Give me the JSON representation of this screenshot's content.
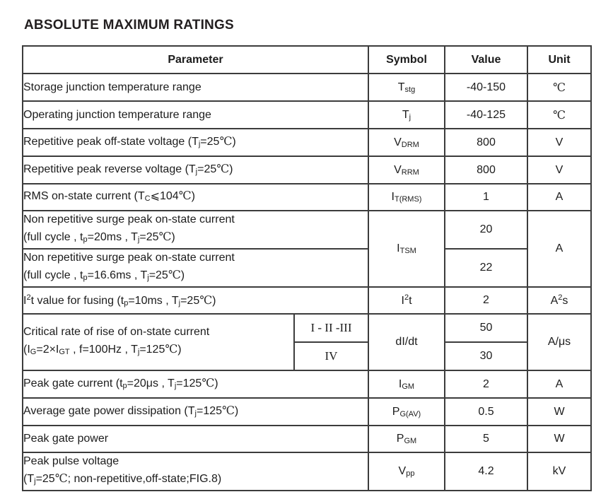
{
  "page_title": "ABSOLUTE MAXIMUM RATINGS",
  "table": {
    "headers": {
      "parameter": "Parameter",
      "symbol": "Symbol",
      "value": "Value",
      "unit": "Unit"
    },
    "rows": {
      "storage_temp": {
        "param": [
          [
            "n",
            "Storage junction temperature range"
          ]
        ],
        "symbol": [
          [
            "n",
            "T"
          ],
          [
            "b",
            "stg"
          ]
        ],
        "value": "-40-150",
        "unit": [
          [
            "c",
            "℃"
          ]
        ]
      },
      "operating_temp": {
        "param": [
          [
            "n",
            "Operating junction temperature range"
          ]
        ],
        "symbol": [
          [
            "n",
            "T"
          ],
          [
            "b",
            "j"
          ]
        ],
        "value": "-40-125",
        "unit": [
          [
            "c",
            "℃"
          ]
        ]
      },
      "vdrm": {
        "param": [
          [
            "n",
            "Repetitive peak off-state voltage (T"
          ],
          [
            "b",
            "j"
          ],
          [
            "n",
            "=25"
          ],
          [
            "c",
            "℃"
          ],
          [
            "n",
            ")"
          ]
        ],
        "symbol": [
          [
            "n",
            "V"
          ],
          [
            "b",
            "DRM"
          ]
        ],
        "value": "800",
        "unit": "V"
      },
      "vrrm": {
        "param": [
          [
            "n",
            "Repetitive peak reverse voltage (T"
          ],
          [
            "b",
            "j"
          ],
          [
            "n",
            "=25"
          ],
          [
            "c",
            "℃"
          ],
          [
            "n",
            ")"
          ]
        ],
        "symbol": [
          [
            "n",
            "V"
          ],
          [
            "b",
            "RRM"
          ]
        ],
        "value": "800",
        "unit": "V"
      },
      "itrms": {
        "param": [
          [
            "n",
            "RMS on-state current (T"
          ],
          [
            "b",
            "C"
          ],
          [
            "n",
            "⩽104"
          ],
          [
            "c",
            "℃"
          ],
          [
            "n",
            ")"
          ]
        ],
        "symbol": [
          [
            "n",
            "I"
          ],
          [
            "b",
            "T(RMS)"
          ]
        ],
        "value": "1",
        "unit": "A"
      },
      "itsm20": {
        "param": [
          [
            "n",
            "Non repetitive surge peak on-state current"
          ],
          [
            "br",
            ""
          ],
          [
            "n",
            "(full cycle , t"
          ],
          [
            "b",
            "p"
          ],
          [
            "n",
            "=20ms , T"
          ],
          [
            "b",
            "j"
          ],
          [
            "n",
            "=25"
          ],
          [
            "c",
            "℃"
          ],
          [
            "n",
            ")"
          ]
        ],
        "symbol": [
          [
            "n",
            "I"
          ],
          [
            "b",
            "TSM"
          ]
        ],
        "value": "20",
        "unit": "A"
      },
      "itsm166": {
        "param": [
          [
            "n",
            "Non repetitive surge peak on-state current"
          ],
          [
            "br",
            ""
          ],
          [
            "n",
            "(full cycle , t"
          ],
          [
            "b",
            "p"
          ],
          [
            "n",
            "=16.6ms , T"
          ],
          [
            "b",
            "j"
          ],
          [
            "n",
            "=25"
          ],
          [
            "c",
            "℃"
          ],
          [
            "n",
            ")"
          ]
        ],
        "value": "22"
      },
      "i2t": {
        "param": [
          [
            "n",
            "I"
          ],
          [
            "p",
            "2"
          ],
          [
            "n",
            "t value for fusing (t"
          ],
          [
            "b",
            "p"
          ],
          [
            "n",
            "=10ms , T"
          ],
          [
            "b",
            "j"
          ],
          [
            "n",
            "=25"
          ],
          [
            "c",
            "℃"
          ],
          [
            "n",
            ")"
          ]
        ],
        "symbol": [
          [
            "n",
            "I"
          ],
          [
            "p",
            "2"
          ],
          [
            "n",
            "t"
          ]
        ],
        "value": "2",
        "unit": [
          [
            "n",
            "A"
          ],
          [
            "p",
            "2"
          ],
          [
            "n",
            "s"
          ]
        ]
      },
      "didt": {
        "param": [
          [
            "n",
            "Critical rate of rise of on-state current"
          ],
          [
            "br",
            ""
          ],
          [
            "n",
            "(I"
          ],
          [
            "b",
            "G"
          ],
          [
            "n",
            "=2×I"
          ],
          [
            "b",
            "GT"
          ],
          [
            "n",
            " , f=100Hz , T"
          ],
          [
            "b",
            "j"
          ],
          [
            "n",
            "=125"
          ],
          [
            "c",
            "℃"
          ],
          [
            "n",
            ")"
          ]
        ],
        "class_1": [
          [
            "r",
            "I - II -III"
          ]
        ],
        "class_2": [
          [
            "r",
            "IV"
          ]
        ],
        "symbol": [
          [
            "n",
            "dI/dt"
          ]
        ],
        "value_1": "50",
        "value_2": "30",
        "unit": "A/μs"
      },
      "igm": {
        "param": [
          [
            "n",
            "Peak gate current (t"
          ],
          [
            "b",
            "p"
          ],
          [
            "n",
            "=20μs , T"
          ],
          [
            "b",
            "j"
          ],
          [
            "n",
            "=125"
          ],
          [
            "c",
            "℃"
          ],
          [
            "n",
            ")"
          ]
        ],
        "symbol": [
          [
            "n",
            "I"
          ],
          [
            "b",
            "GM"
          ]
        ],
        "value": "2",
        "unit": "A"
      },
      "pgav": {
        "param": [
          [
            "n",
            "Average gate power dissipation (T"
          ],
          [
            "b",
            "j"
          ],
          [
            "n",
            "=125"
          ],
          [
            "c",
            "℃"
          ],
          [
            "n",
            ")"
          ]
        ],
        "symbol": [
          [
            "n",
            "P"
          ],
          [
            "b",
            "G(AV)"
          ]
        ],
        "value": "0.5",
        "unit": "W"
      },
      "pgm": {
        "param": [
          [
            "n",
            "Peak gate power"
          ]
        ],
        "symbol": [
          [
            "n",
            "P"
          ],
          [
            "b",
            "GM"
          ]
        ],
        "value": "5",
        "unit": "W"
      },
      "vpp": {
        "param": [
          [
            "n",
            "Peak pulse voltage"
          ],
          [
            "br",
            ""
          ],
          [
            "n",
            "(T"
          ],
          [
            "b",
            "j"
          ],
          [
            "n",
            "=25"
          ],
          [
            "c",
            "℃"
          ],
          [
            "n",
            "; non-repetitive,off-state;FIG.8)"
          ]
        ],
        "symbol": [
          [
            "n",
            "V"
          ],
          [
            "b",
            "pp"
          ]
        ],
        "value": "4.2",
        "unit": "kV"
      }
    }
  }
}
